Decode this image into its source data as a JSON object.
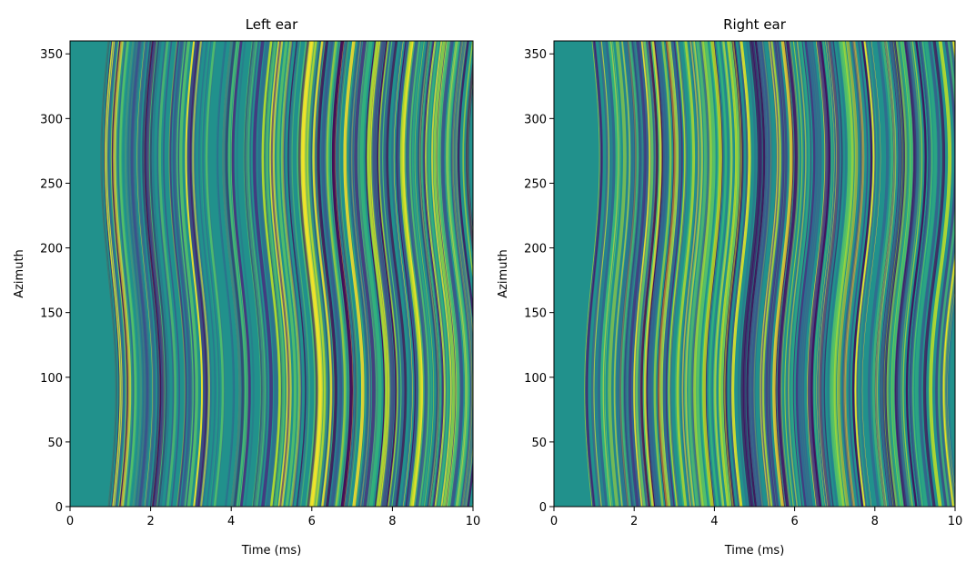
{
  "chart_data": [
    {
      "type": "heatmap",
      "title": "Left ear",
      "xlabel": "Time (ms)",
      "ylabel": "Azimuth",
      "xlim": [
        0,
        10
      ],
      "ylim": [
        0,
        360
      ],
      "xticks": [
        0,
        2,
        4,
        6,
        8,
        10
      ],
      "yticks": [
        0,
        50,
        100,
        150,
        200,
        250,
        300,
        350
      ]
    },
    {
      "type": "heatmap",
      "title": "Right ear",
      "xlabel": "Time (ms)",
      "ylabel": "Azimuth",
      "xlim": [
        0,
        10
      ],
      "ylim": [
        0,
        360
      ],
      "xticks": [
        0,
        2,
        4,
        6,
        8,
        10
      ],
      "yticks": [
        0,
        50,
        100,
        150,
        200,
        250,
        300,
        350
      ]
    }
  ]
}
